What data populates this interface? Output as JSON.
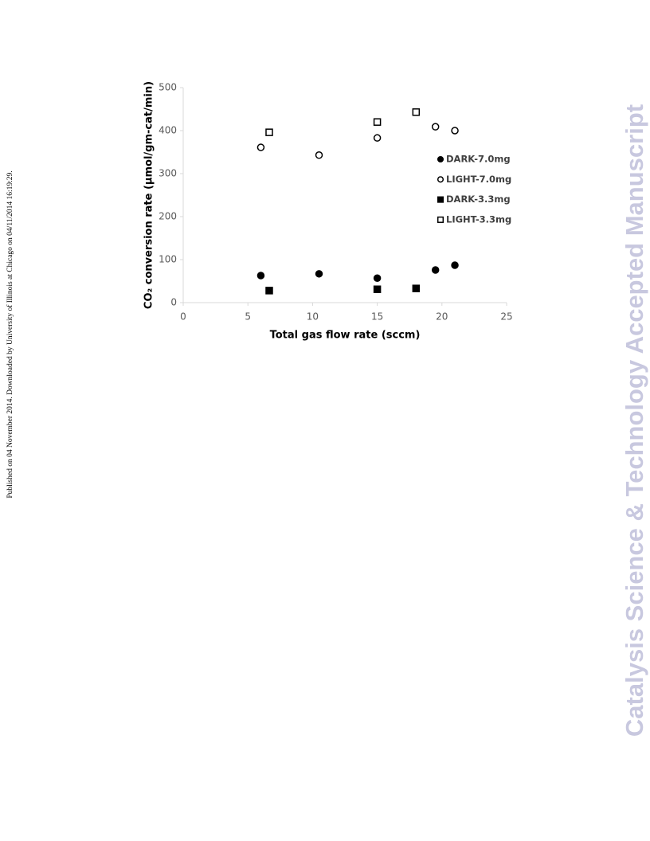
{
  "side_note": "Published on 04 November 2014. Downloaded by University of Illinois at Chicago on 04/11/2014 16:19:29.",
  "watermark": "Catalysis Science & Technology Accepted Manuscript",
  "chart_data": {
    "type": "scatter",
    "x_label": "Total gas flow rate (sccm)",
    "y_label": "CO₂ conversion rate (µmol/gm-cat/min)",
    "xlim": [
      0,
      25
    ],
    "xticks": [
      0,
      5,
      10,
      15,
      20,
      25
    ],
    "ylim": [
      0,
      500
    ],
    "yticks": [
      0,
      100,
      200,
      300,
      400,
      500
    ],
    "grid": false,
    "legend": "right",
    "series": [
      {
        "name": "DARK-7.0mg",
        "color": "#000000",
        "marker": "circle",
        "filled": true,
        "x": [
          6,
          10.5,
          15,
          19.5,
          21
        ],
        "values": [
          63,
          67,
          57,
          76,
          87
        ]
      },
      {
        "name": "LIGHT-7.0mg",
        "color": "#000000",
        "marker": "circle",
        "filled": false,
        "x": [
          6,
          10.5,
          15,
          19.5,
          21
        ],
        "values": [
          361,
          343,
          383,
          409,
          400
        ]
      },
      {
        "name": "DARK-3.3mg",
        "color": "#000000",
        "marker": "square",
        "filled": true,
        "x": [
          6.65,
          15,
          18
        ],
        "values": [
          28,
          31,
          33
        ]
      },
      {
        "name": "LIGHT-3.3mg",
        "color": "#000000",
        "marker": "square",
        "filled": false,
        "x": [
          6.65,
          15,
          18
        ],
        "values": [
          396,
          420,
          443
        ]
      }
    ]
  }
}
